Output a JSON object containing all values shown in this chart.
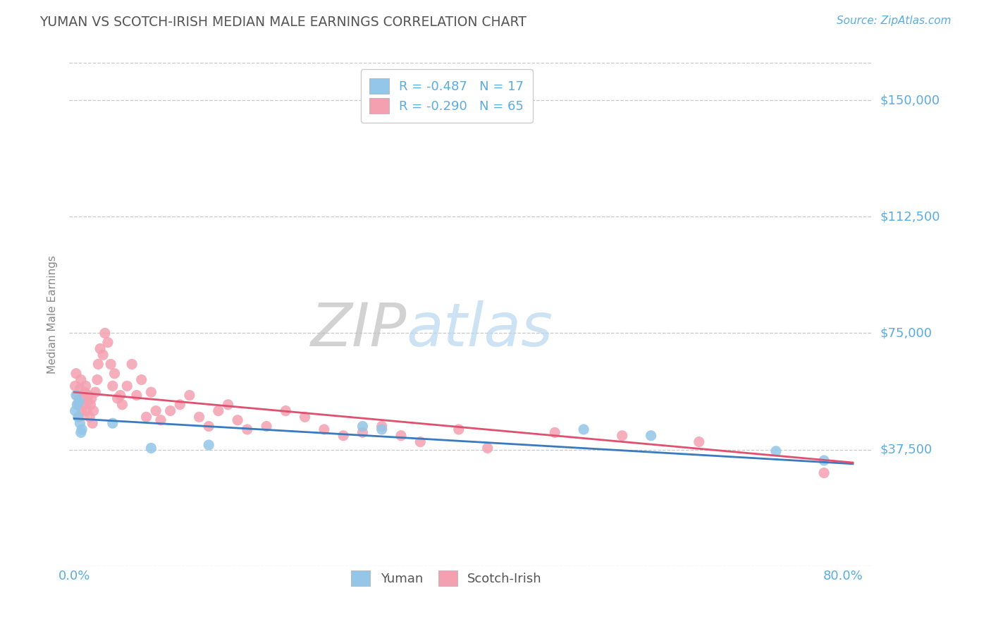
{
  "title": "YUMAN VS SCOTCH-IRISH MEDIAN MALE EARNINGS CORRELATION CHART",
  "source": "Source: ZipAtlas.com",
  "ylabel": "Median Male Earnings",
  "ytick_values": [
    0,
    37500,
    75000,
    112500,
    150000
  ],
  "ytick_labels": [
    "",
    "$37,500",
    "$75,000",
    "$112,500",
    "$150,000"
  ],
  "ylim": [
    5000,
    162000
  ],
  "xlim": [
    -0.005,
    0.83
  ],
  "background_color": "#ffffff",
  "grid_color": "#c8c8c8",
  "legend1_label": "R = -0.487   N = 17",
  "legend2_label": "R = -0.290   N = 65",
  "yuman_color": "#93c6e8",
  "scotch_irish_color": "#f4a0b0",
  "yuman_line_color": "#3a7bbf",
  "scotch_irish_line_color": "#e05070",
  "title_color": "#555555",
  "axis_label_color": "#5aace0",
  "source_color": "#5aace0",
  "yuman_line_intercept": 47500,
  "yuman_line_slope": -18000,
  "scotch_irish_line_intercept": 56000,
  "scotch_irish_line_slope": -28000,
  "yuman_x": [
    0.001,
    0.002,
    0.003,
    0.004,
    0.005,
    0.006,
    0.007,
    0.008,
    0.04,
    0.08,
    0.14,
    0.3,
    0.32,
    0.53,
    0.6,
    0.73,
    0.78
  ],
  "yuman_y": [
    50000,
    55000,
    52000,
    48000,
    53000,
    46000,
    43000,
    44000,
    46000,
    38000,
    39000,
    45000,
    44000,
    44000,
    42000,
    37000,
    34000
  ],
  "scotch_irish_x": [
    0.001,
    0.002,
    0.003,
    0.004,
    0.005,
    0.006,
    0.007,
    0.008,
    0.009,
    0.01,
    0.011,
    0.012,
    0.013,
    0.014,
    0.015,
    0.016,
    0.017,
    0.018,
    0.019,
    0.02,
    0.022,
    0.024,
    0.025,
    0.027,
    0.03,
    0.032,
    0.035,
    0.038,
    0.04,
    0.042,
    0.045,
    0.048,
    0.05,
    0.055,
    0.06,
    0.065,
    0.07,
    0.075,
    0.08,
    0.085,
    0.09,
    0.1,
    0.11,
    0.12,
    0.13,
    0.14,
    0.15,
    0.16,
    0.17,
    0.18,
    0.2,
    0.22,
    0.24,
    0.26,
    0.28,
    0.3,
    0.32,
    0.34,
    0.36,
    0.4,
    0.43,
    0.5,
    0.57,
    0.65,
    0.78
  ],
  "scotch_irish_y": [
    58000,
    62000,
    55000,
    52000,
    48000,
    57000,
    60000,
    50000,
    54000,
    52000,
    56000,
    58000,
    50000,
    53000,
    55000,
    48000,
    52000,
    54000,
    46000,
    50000,
    56000,
    60000,
    65000,
    70000,
    68000,
    75000,
    72000,
    65000,
    58000,
    62000,
    54000,
    55000,
    52000,
    58000,
    65000,
    55000,
    60000,
    48000,
    56000,
    50000,
    47000,
    50000,
    52000,
    55000,
    48000,
    45000,
    50000,
    52000,
    47000,
    44000,
    45000,
    50000,
    48000,
    44000,
    42000,
    43000,
    45000,
    42000,
    40000,
    44000,
    38000,
    43000,
    42000,
    40000,
    30000
  ]
}
